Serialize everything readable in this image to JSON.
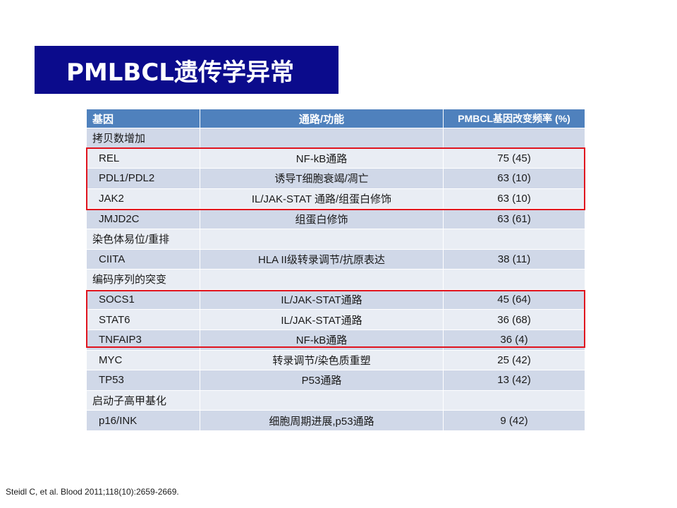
{
  "title": "PMLBCL遗传学异常",
  "table": {
    "headers": [
      "基因",
      "通路/功能",
      "PMBCL基因改变频率 (%)"
    ],
    "rows": [
      {
        "type": "category",
        "gene": "拷贝数增加",
        "pathway": "",
        "frequency": ""
      },
      {
        "type": "item",
        "gene": "REL",
        "pathway": "NF-kB通路",
        "frequency": "75 (45)"
      },
      {
        "type": "item",
        "gene": "PDL1/PDL2",
        "pathway": "诱导T细胞衰竭/凋亡",
        "frequency": "63 (10)"
      },
      {
        "type": "item",
        "gene": "JAK2",
        "pathway": "IL/JAK-STAT 通路/组蛋白修饰",
        "frequency": "63 (10)"
      },
      {
        "type": "item",
        "gene": "JMJD2C",
        "pathway": "组蛋白修饰",
        "frequency": "63 (61)"
      },
      {
        "type": "category",
        "gene": "染色体易位/重排",
        "pathway": "",
        "frequency": ""
      },
      {
        "type": "item",
        "gene": "CIITA",
        "pathway": "HLA II级转录调节/抗原表达",
        "frequency": "38 (11)"
      },
      {
        "type": "category",
        "gene": "编码序列的突变",
        "pathway": "",
        "frequency": ""
      },
      {
        "type": "item",
        "gene": "SOCS1",
        "pathway": "IL/JAK-STAT通路",
        "frequency": "45 (64)"
      },
      {
        "type": "item",
        "gene": "STAT6",
        "pathway": "IL/JAK-STAT通路",
        "frequency": "36 (68)"
      },
      {
        "type": "item",
        "gene": "TNFAIP3",
        "pathway": "NF-kB通路",
        "frequency": "36 (4)"
      },
      {
        "type": "item",
        "gene": "MYC",
        "pathway": "转录调节/染色质重塑",
        "frequency": "25 (42)"
      },
      {
        "type": "item",
        "gene": "TP53",
        "pathway": "P53通路",
        "frequency": "13 (42)"
      },
      {
        "type": "category",
        "gene": "启动子高甲基化",
        "pathway": "",
        "frequency": ""
      },
      {
        "type": "item",
        "gene": "p16/INK",
        "pathway": "细胞周期进展,p53通路",
        "frequency": "9 (42)"
      }
    ]
  },
  "citation": "Steidl C, et al. Blood 2011;118(10):2659-2669.",
  "colors": {
    "title_bg": "#0b0b8c",
    "header_bg": "#4f81bd",
    "row_odd": "#d0d8e8",
    "row_even": "#e9edf4",
    "highlight": "#e0141e"
  }
}
